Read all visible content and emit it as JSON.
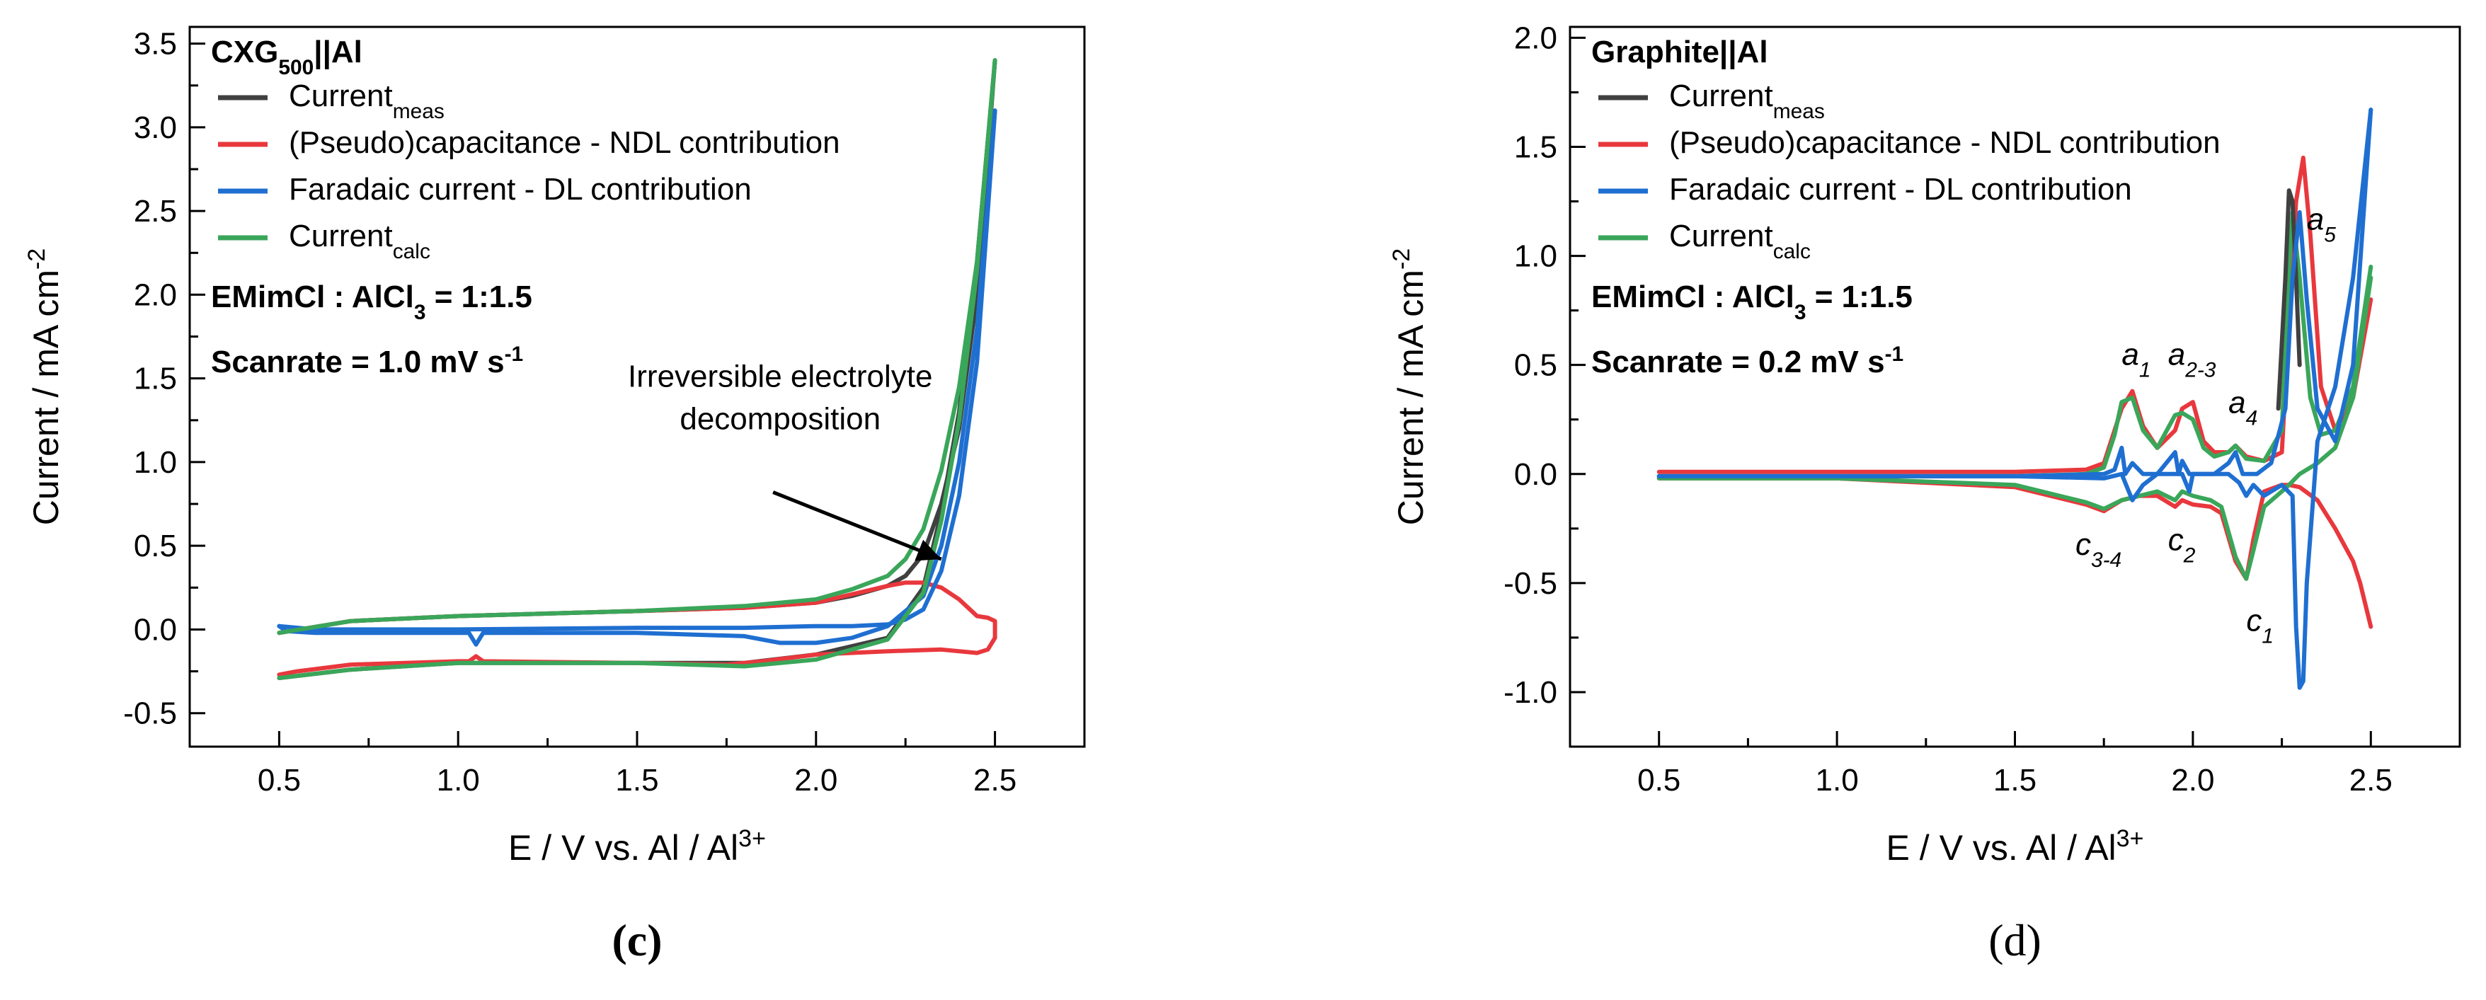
{
  "chart_data": [
    {
      "type": "line",
      "panel_label": "c",
      "title": "CXG",
      "title_sub": "500",
      "title_suffix": "||Al",
      "electrolyte": {
        "prefix": "EMimCl : AlCl",
        "sub": "3",
        "suffix": " = 1:1.5"
      },
      "scanrate": {
        "prefix": "Scanrate = 1.0 mV s",
        "sup": "-1"
      },
      "xlabel": {
        "prefix": "E / V vs. Al / Al",
        "sup": "3+"
      },
      "ylabel": {
        "prefix": "Current / mA cm",
        "sup": "-2"
      },
      "xlim": [
        0.25,
        2.75
      ],
      "ylim": [
        -0.7,
        3.6
      ],
      "xticks": [
        0.5,
        1.0,
        1.5,
        2.0,
        2.5
      ],
      "xtick_labels": [
        "0.5",
        "1.0",
        "1.5",
        "2.0",
        "2.5"
      ],
      "yticks": [
        -0.5,
        0.0,
        0.5,
        1.0,
        1.5,
        2.0,
        2.5,
        3.0,
        3.5
      ],
      "ytick_labels": [
        "-0.5",
        "0.0",
        "0.5",
        "1.0",
        "1.5",
        "2.0",
        "2.5",
        "3.0",
        "3.5"
      ],
      "legend": [
        {
          "color": "#404040",
          "text": "Current",
          "sub": "meas"
        },
        {
          "color": "#e8383d",
          "text": "(Pseudo)capacitance - NDL contribution",
          "sub": ""
        },
        {
          "color": "#1f6fd1",
          "text": "Faradaic current - DL contribution",
          "sub": ""
        },
        {
          "color": "#3aa65a",
          "text": "Current",
          "sub": "calc"
        }
      ],
      "annotation": {
        "lines": [
          "Irreversible electrolyte",
          "decomposition"
        ],
        "points_to": [
          2.35,
          0.42
        ]
      },
      "series": [
        {
          "name": "Current_meas",
          "color": "#404040",
          "loops": [
            {
              "x": [
                0.5,
                0.7,
                1.0,
                1.5,
                1.8,
                2.0,
                2.2,
                2.3,
                2.35,
                2.4,
                2.45,
                2.5
              ],
              "y": [
                -0.29,
                -0.24,
                -0.2,
                -0.2,
                -0.2,
                -0.15,
                -0.05,
                0.25,
                0.7,
                1.3,
                2.2,
                3.4
              ]
            },
            {
              "x": [
                2.5,
                2.45,
                2.4,
                2.35,
                2.3,
                2.25,
                2.2,
                2.1,
                2.0,
                1.8,
                1.5,
                1.0,
                0.7,
                0.5
              ],
              "y": [
                3.4,
                2.0,
                1.2,
                0.75,
                0.45,
                0.32,
                0.26,
                0.2,
                0.16,
                0.13,
                0.11,
                0.08,
                0.05,
                -0.02
              ]
            }
          ]
        },
        {
          "name": "(Pseudo)capacitance - NDL contribution",
          "color": "#e8383d",
          "loops": [
            {
              "x": [
                0.5,
                0.55,
                0.7,
                1.0,
                1.03,
                1.05,
                1.07,
                1.5,
                1.75,
                1.85,
                2.0,
                2.2,
                2.35,
                2.45,
                2.48,
                2.5
              ],
              "y": [
                -0.27,
                -0.25,
                -0.21,
                -0.19,
                -0.19,
                -0.16,
                -0.19,
                -0.2,
                -0.21,
                -0.19,
                -0.15,
                -0.13,
                -0.12,
                -0.14,
                -0.12,
                -0.05
              ]
            },
            {
              "x": [
                2.5,
                2.5,
                2.48,
                2.45,
                2.4,
                2.35,
                2.3,
                2.25,
                2.2,
                2.1,
                2.0,
                1.8,
                1.5,
                1.0,
                0.7,
                0.5
              ],
              "y": [
                -0.05,
                0.05,
                0.07,
                0.08,
                0.18,
                0.25,
                0.28,
                0.28,
                0.26,
                0.21,
                0.16,
                0.13,
                0.11,
                0.08,
                0.05,
                -0.02
              ]
            }
          ]
        },
        {
          "name": "Faradaic current - DL contribution",
          "color": "#1f6fd1",
          "loops": [
            {
              "x": [
                0.5,
                0.52,
                0.6,
                1.0,
                1.03,
                1.05,
                1.07,
                1.5,
                1.8,
                1.9,
                2.0,
                2.1,
                2.2,
                2.3,
                2.35,
                2.4,
                2.45,
                2.5
              ],
              "y": [
                0.02,
                -0.01,
                -0.02,
                -0.02,
                -0.02,
                -0.09,
                -0.02,
                -0.02,
                -0.04,
                -0.08,
                -0.08,
                -0.05,
                0.02,
                0.2,
                0.5,
                1.0,
                1.8,
                3.1
              ]
            },
            {
              "x": [
                2.5,
                2.45,
                2.4,
                2.35,
                2.3,
                2.25,
                2.2,
                2.1,
                2.0,
                1.8,
                1.5,
                1.0,
                0.6,
                0.5
              ],
              "y": [
                3.1,
                1.6,
                0.8,
                0.35,
                0.12,
                0.06,
                0.03,
                0.02,
                0.02,
                0.01,
                0.01,
                0.0,
                0.0,
                0.02
              ]
            }
          ]
        },
        {
          "name": "Current_calc",
          "color": "#3aa65a",
          "loops": [
            {
              "x": [
                0.5,
                0.7,
                1.0,
                1.5,
                1.8,
                2.0,
                2.2,
                2.3,
                2.35,
                2.4,
                2.45,
                2.5
              ],
              "y": [
                -0.29,
                -0.24,
                -0.2,
                -0.2,
                -0.22,
                -0.18,
                -0.06,
                0.22,
                0.65,
                1.25,
                2.15,
                3.4
              ]
            },
            {
              "x": [
                2.5,
                2.45,
                2.4,
                2.35,
                2.3,
                2.25,
                2.2,
                2.1,
                2.0,
                1.8,
                1.5,
                1.0,
                0.7,
                0.5
              ],
              "y": [
                3.4,
                2.2,
                1.45,
                0.95,
                0.6,
                0.42,
                0.32,
                0.24,
                0.18,
                0.14,
                0.11,
                0.08,
                0.05,
                -0.02
              ]
            }
          ]
        }
      ]
    },
    {
      "type": "line",
      "panel_label": "d",
      "title": "Graphite||Al",
      "title_sub": "",
      "title_suffix": "",
      "electrolyte": {
        "prefix": "EMimCl : AlCl",
        "sub": "3",
        "suffix": " = 1:1.5"
      },
      "scanrate": {
        "prefix": "Scanrate = 0.2 mV s",
        "sup": "-1"
      },
      "xlabel": {
        "prefix": "E / V vs. Al / Al",
        "sup": "3+"
      },
      "ylabel": {
        "prefix": "Current / mA cm",
        "sup": "-2"
      },
      "xlim": [
        0.25,
        2.75
      ],
      "ylim": [
        -1.25,
        2.05
      ],
      "xticks": [
        0.5,
        1.0,
        1.5,
        2.0,
        2.5
      ],
      "xtick_labels": [
        "0.5",
        "1.0",
        "1.5",
        "2.0",
        "2.5"
      ],
      "yticks": [
        -1.0,
        -0.5,
        0.0,
        0.5,
        1.0,
        1.5,
        2.0
      ],
      "ytick_labels": [
        "-1.0",
        "-0.5",
        "0.0",
        "0.5",
        "1.0",
        "1.5",
        "2.0"
      ],
      "legend": [
        {
          "color": "#404040",
          "text": "Current",
          "sub": "meas"
        },
        {
          "color": "#e8383d",
          "text": "(Pseudo)capacitance - NDL contribution",
          "sub": ""
        },
        {
          "color": "#1f6fd1",
          "text": "Faradaic current - DL contribution",
          "sub": ""
        },
        {
          "color": "#3aa65a",
          "text": "Current",
          "sub": "calc"
        }
      ],
      "peak_labels": [
        {
          "main": "a",
          "sub": "1",
          "x": 1.8,
          "y": 0.5
        },
        {
          "main": "a",
          "sub": "2-3",
          "x": 1.93,
          "y": 0.5
        },
        {
          "main": "a",
          "sub": "4",
          "x": 2.1,
          "y": 0.28
        },
        {
          "main": "a",
          "sub": "5",
          "x": 2.32,
          "y": 1.12
        },
        {
          "main": "c",
          "sub": "3-4",
          "x": 1.67,
          "y": -0.37
        },
        {
          "main": "c",
          "sub": "2",
          "x": 1.93,
          "y": -0.35
        },
        {
          "main": "c",
          "sub": "1",
          "x": 2.15,
          "y": -0.72
        }
      ],
      "series": [
        {
          "name": "(Pseudo)capacitance - NDL contribution",
          "color": "#e8383d",
          "loops": [
            {
              "x": [
                0.5,
                1.0,
                1.5,
                1.7,
                1.75,
                1.78,
                1.8,
                1.83,
                1.86,
                1.9,
                1.95,
                1.97,
                2.0,
                2.03,
                2.06,
                2.1,
                2.12,
                2.15,
                2.2,
                2.25,
                2.27,
                2.29,
                2.31,
                2.33,
                2.36,
                2.4,
                2.45,
                2.5
              ],
              "y": [
                0.01,
                0.01,
                0.01,
                0.02,
                0.05,
                0.2,
                0.3,
                0.38,
                0.22,
                0.12,
                0.2,
                0.3,
                0.33,
                0.15,
                0.1,
                0.1,
                0.13,
                0.08,
                0.06,
                0.1,
                0.7,
                1.25,
                1.45,
                1.1,
                0.4,
                0.2,
                0.35,
                0.8
              ]
            },
            {
              "x": [
                2.5,
                2.47,
                2.45,
                2.4,
                2.35,
                2.3,
                2.27,
                2.25,
                2.2,
                2.17,
                2.15,
                2.12,
                2.08,
                2.05,
                2.0,
                1.97,
                1.95,
                1.9,
                1.85,
                1.8,
                1.75,
                1.7,
                1.5,
                1.0,
                0.5
              ],
              "y": [
                -0.7,
                -0.5,
                -0.4,
                -0.25,
                -0.12,
                -0.06,
                -0.05,
                -0.05,
                -0.08,
                -0.3,
                -0.48,
                -0.4,
                -0.18,
                -0.15,
                -0.14,
                -0.12,
                -0.15,
                -0.1,
                -0.1,
                -0.12,
                -0.17,
                -0.14,
                -0.06,
                -0.02,
                -0.02
              ]
            }
          ]
        },
        {
          "name": "Current_calc",
          "color": "#3aa65a",
          "loops": [
            {
              "x": [
                0.5,
                1.0,
                1.5,
                1.7,
                1.75,
                1.78,
                1.8,
                1.83,
                1.86,
                1.9,
                1.95,
                1.97,
                2.0,
                2.03,
                2.06,
                2.1,
                2.12,
                2.15,
                2.2,
                2.25,
                2.27,
                2.28,
                2.3,
                2.33,
                2.36,
                2.4,
                2.45,
                2.5
              ],
              "y": [
                -0.01,
                -0.01,
                -0.01,
                0.0,
                0.03,
                0.18,
                0.33,
                0.35,
                0.2,
                0.12,
                0.27,
                0.28,
                0.25,
                0.12,
                0.08,
                0.1,
                0.13,
                0.07,
                0.06,
                0.2,
                0.95,
                1.2,
                0.9,
                0.35,
                0.18,
                0.2,
                0.4,
                0.95
              ]
            },
            {
              "x": [
                2.5,
                2.45,
                2.4,
                2.35,
                2.3,
                2.27,
                2.25,
                2.2,
                2.17,
                2.15,
                2.12,
                2.08,
                2.05,
                2.0,
                1.97,
                1.95,
                1.9,
                1.85,
                1.8,
                1.75,
                1.7,
                1.5,
                1.0,
                0.5
              ],
              "y": [
                0.9,
                0.35,
                0.12,
                0.05,
                0.0,
                -0.05,
                -0.08,
                -0.15,
                -0.35,
                -0.48,
                -0.38,
                -0.15,
                -0.12,
                -0.1,
                -0.08,
                -0.12,
                -0.08,
                -0.1,
                -0.12,
                -0.16,
                -0.13,
                -0.05,
                -0.02,
                -0.02
              ]
            }
          ]
        },
        {
          "name": "Current_meas",
          "color": "#404040",
          "loops": [
            {
              "x": [
                2.24,
                2.26,
                2.27,
                2.28,
                2.29,
                2.3
              ],
              "y": [
                0.3,
                0.9,
                1.3,
                1.25,
                0.9,
                0.5
              ]
            }
          ]
        },
        {
          "name": "Faradaic current - DL contribution",
          "color": "#1f6fd1",
          "loops": [
            {
              "x": [
                0.5,
                1.0,
                1.5,
                1.75,
                1.78,
                1.8,
                1.81,
                1.83,
                1.86,
                1.9,
                1.95,
                1.96,
                1.97,
                1.99,
                2.02,
                2.06,
                2.1,
                2.12,
                2.14,
                2.18,
                2.22,
                2.26,
                2.28,
                2.3,
                2.32,
                2.35,
                2.4,
                2.45,
                2.5
              ],
              "y": [
                -0.01,
                -0.01,
                -0.01,
                0.0,
                0.02,
                0.12,
                0.0,
                0.05,
                0.0,
                0.0,
                0.1,
                0.0,
                0.06,
                0.0,
                0.0,
                0.0,
                0.05,
                0.1,
                0.0,
                0.0,
                0.05,
                0.3,
                0.9,
                1.2,
                0.8,
                0.3,
                0.15,
                0.5,
                1.67
              ]
            },
            {
              "x": [
                2.5,
                2.45,
                2.4,
                2.35,
                2.32,
                2.31,
                2.3,
                2.29,
                2.28,
                2.25,
                2.2,
                2.17,
                2.15,
                2.13,
                2.1,
                2.05,
                2.0,
                1.99,
                1.97,
                1.9,
                1.86,
                1.83,
                1.8,
                1.75,
                1.5,
                1.0,
                0.5
              ],
              "y": [
                1.67,
                0.9,
                0.4,
                0.15,
                -0.5,
                -0.95,
                -0.98,
                -0.7,
                -0.1,
                -0.05,
                -0.1,
                -0.05,
                -0.1,
                -0.04,
                0.0,
                0.0,
                0.0,
                -0.08,
                0.0,
                0.0,
                -0.05,
                -0.12,
                0.0,
                -0.02,
                -0.01,
                -0.01,
                -0.01
              ]
            }
          ]
        }
      ]
    }
  ]
}
